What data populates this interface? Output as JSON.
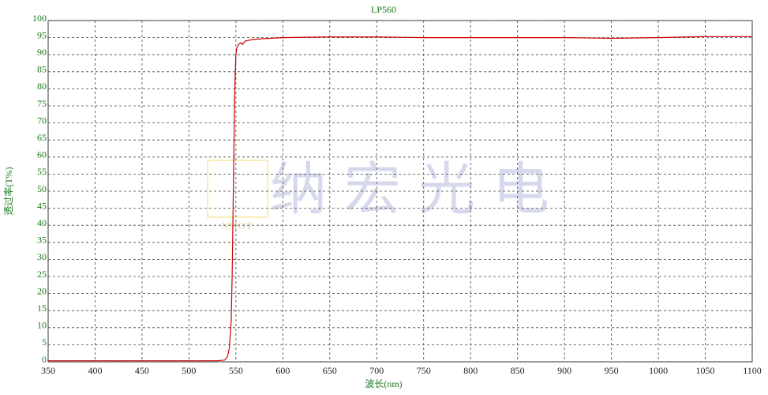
{
  "chart_data": {
    "type": "line",
    "title": "LP560",
    "x_label": "波长(nm)",
    "y_label": "透过率(T%)",
    "watermark": {
      "text": "纳宏光电",
      "logo": "NMOT"
    },
    "x": [
      350,
      400,
      450,
      500,
      530,
      538,
      541,
      543,
      545,
      546,
      547,
      548,
      549,
      550,
      551,
      553,
      555,
      557,
      560,
      565,
      570,
      580,
      600,
      650,
      700,
      750,
      800,
      850,
      900,
      950,
      1000,
      1050,
      1100
    ],
    "series": [
      {
        "name": "LP560",
        "color": "#cc0000",
        "values": [
          0.3,
          0.3,
          0.3,
          0.3,
          0.3,
          0.5,
          1.5,
          4,
          12,
          25,
          45,
          65,
          82,
          90,
          92,
          93,
          93.5,
          93,
          94,
          94.3,
          94.5,
          94.7,
          95,
          95.2,
          95.2,
          95,
          95,
          95,
          95,
          94.8,
          95,
          95.3,
          95.3
        ]
      }
    ],
    "xlim": [
      350,
      1100
    ],
    "xticks": [
      350,
      400,
      450,
      500,
      550,
      600,
      650,
      700,
      750,
      800,
      850,
      900,
      950,
      1000,
      1050,
      1100
    ],
    "ylim": [
      0,
      100
    ],
    "yticks": [
      0,
      5,
      10,
      15,
      20,
      25,
      30,
      35,
      40,
      45,
      50,
      55,
      60,
      65,
      70,
      75,
      80,
      85,
      90,
      95,
      100
    ],
    "grid": true
  }
}
